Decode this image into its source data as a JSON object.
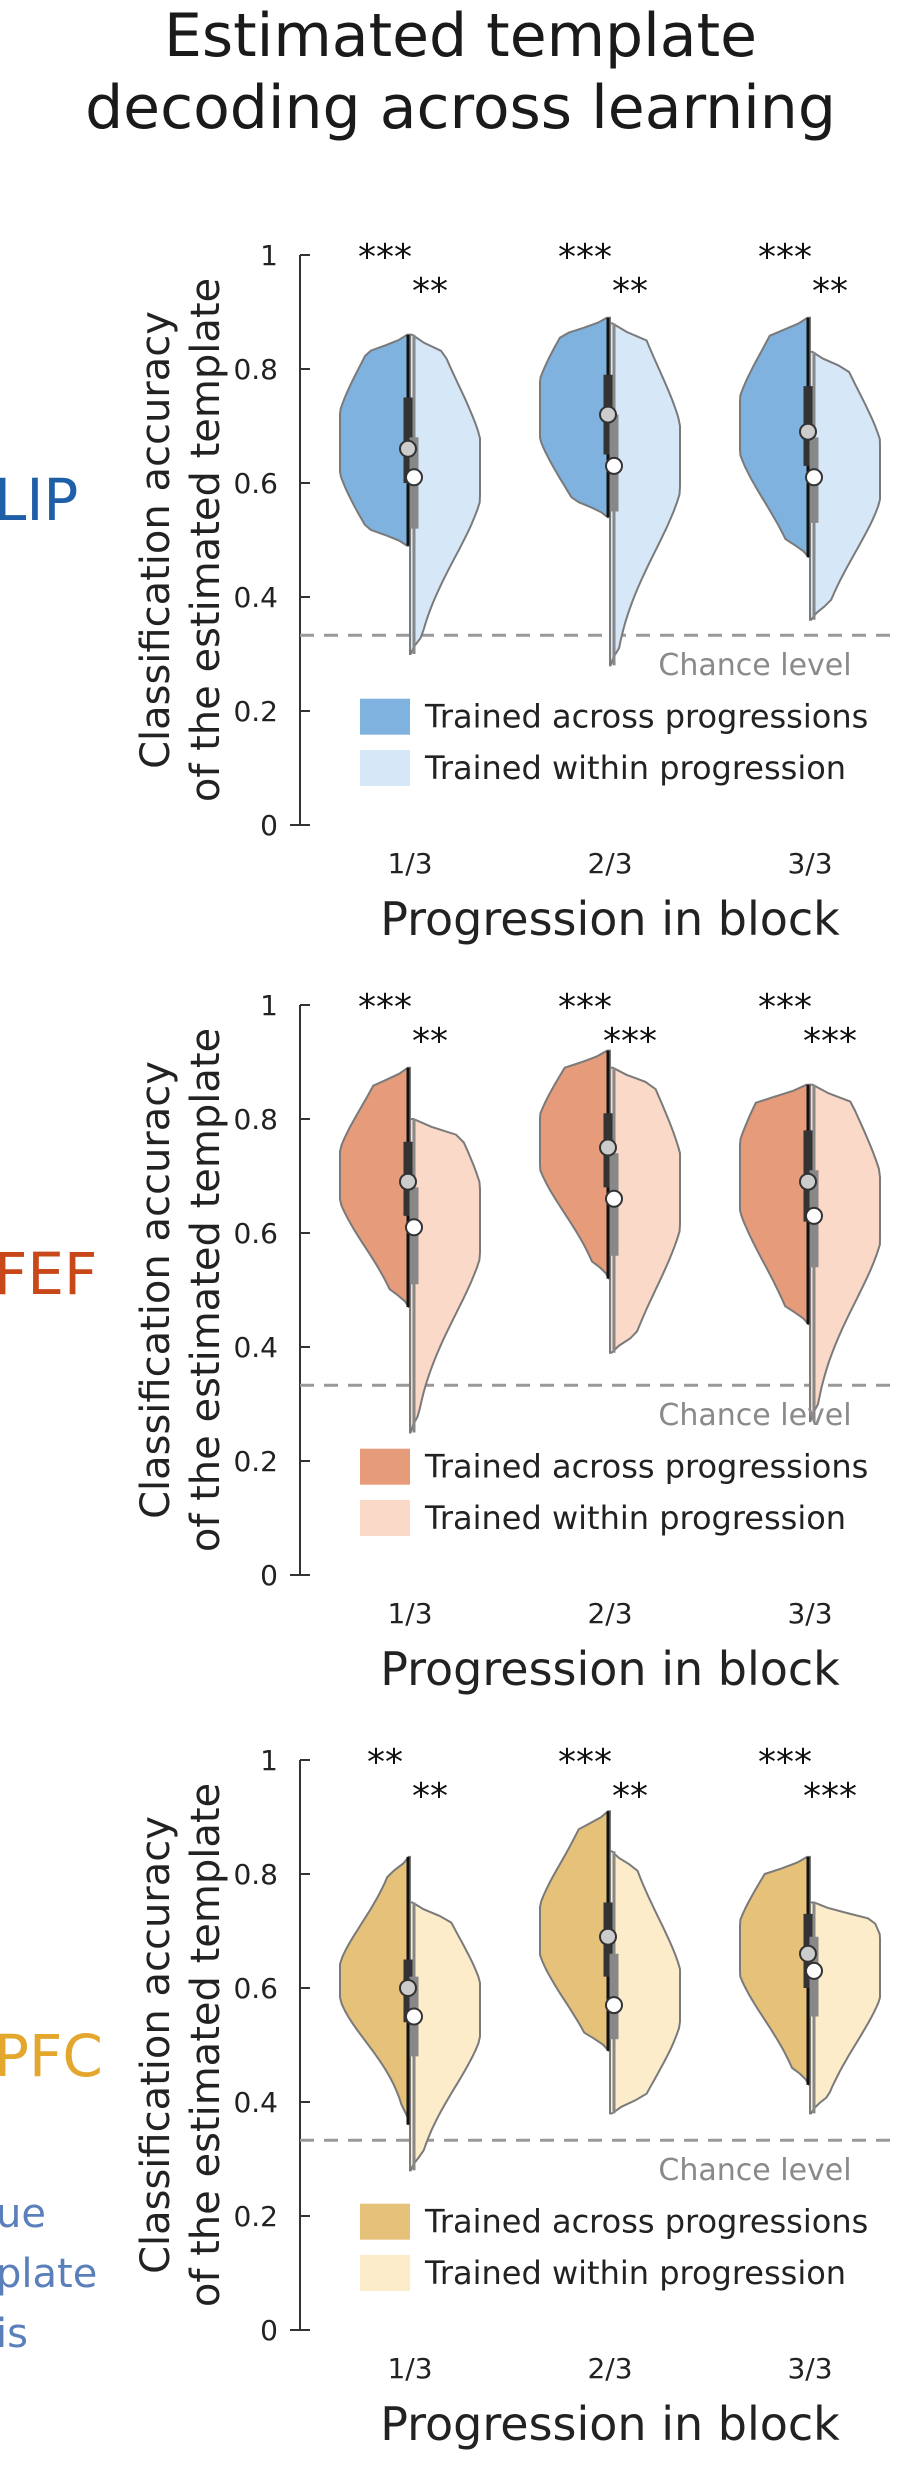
{
  "title": {
    "line1": "Estimated template",
    "line2": "decoding across learning"
  },
  "side_fragments": [
    "ue",
    "plate",
    "is"
  ],
  "common": {
    "categories": [
      "1/3",
      "2/3",
      "3/3"
    ],
    "ylim": [
      0,
      1
    ],
    "yticks": [
      0,
      0.2,
      0.4,
      0.6,
      0.8,
      1
    ],
    "ytick_labels": [
      "0",
      "0.2",
      "0.4",
      "0.6",
      "0.8",
      "1"
    ],
    "ylabel_line1": "Classification accuracy",
    "ylabel_line2": "of the estimated template",
    "xlabel": "Progression in block",
    "chance_value": 0.333,
    "chance_label": "Chance level",
    "legend": [
      "Trained across progressions",
      "Trained within progression"
    ]
  },
  "chart_data": [
    {
      "type": "violin",
      "region": "LIP",
      "region_color": "#1f5fa8",
      "colors": {
        "across": "#7fb2df",
        "within": "#d6e8f8",
        "edge": "#7a7a7a"
      },
      "categories": [
        "1/3",
        "2/3",
        "3/3"
      ],
      "xlabel": "Progression in block",
      "ylabel": "Classification accuracy of the estimated template",
      "ylim": [
        0,
        1
      ],
      "chance_level": 0.333,
      "legend_position": "bottom",
      "series": [
        {
          "name": "Trained across progressions",
          "medians": [
            0.66,
            0.72,
            0.69
          ],
          "min": [
            0.49,
            0.54,
            0.47
          ],
          "max": [
            0.86,
            0.89,
            0.89
          ],
          "q1": [
            0.6,
            0.65,
            0.63
          ],
          "q3": [
            0.75,
            0.79,
            0.77
          ],
          "significance": [
            "***",
            "***",
            "***"
          ]
        },
        {
          "name": "Trained within progression",
          "medians": [
            0.61,
            0.63,
            0.61
          ],
          "min": [
            0.3,
            0.28,
            0.36
          ],
          "max": [
            0.86,
            0.88,
            0.83
          ],
          "q1": [
            0.52,
            0.55,
            0.53
          ],
          "q3": [
            0.68,
            0.72,
            0.68
          ],
          "significance": [
            "**",
            "**",
            "**"
          ]
        }
      ]
    },
    {
      "type": "violin",
      "region": "FEF",
      "region_color": "#c8481a",
      "colors": {
        "across": "#e69b7b",
        "within": "#fbd9c8",
        "edge": "#7a7a7a"
      },
      "categories": [
        "1/3",
        "2/3",
        "3/3"
      ],
      "xlabel": "Progression in block",
      "ylabel": "Classification accuracy of the estimated template",
      "ylim": [
        0,
        1
      ],
      "chance_level": 0.333,
      "legend_position": "bottom",
      "series": [
        {
          "name": "Trained across progressions",
          "medians": [
            0.69,
            0.75,
            0.69
          ],
          "min": [
            0.47,
            0.52,
            0.44
          ],
          "max": [
            0.89,
            0.92,
            0.86
          ],
          "q1": [
            0.63,
            0.68,
            0.62
          ],
          "q3": [
            0.76,
            0.81,
            0.78
          ],
          "significance": [
            "***",
            "***",
            "***"
          ]
        },
        {
          "name": "Trained within progression",
          "medians": [
            0.61,
            0.66,
            0.63
          ],
          "min": [
            0.25,
            0.39,
            0.27
          ],
          "max": [
            0.8,
            0.89,
            0.86
          ],
          "q1": [
            0.51,
            0.56,
            0.54
          ],
          "q3": [
            0.68,
            0.74,
            0.71
          ],
          "significance": [
            "**",
            "***",
            "***"
          ]
        }
      ]
    },
    {
      "type": "violin",
      "region": "PFC",
      "region_color": "#e3a72e",
      "colors": {
        "across": "#e6c17a",
        "within": "#fcecca",
        "edge": "#7a7a7a"
      },
      "categories": [
        "1/3",
        "2/3",
        "3/3"
      ],
      "xlabel": "Progression in block",
      "ylabel": "Classification accuracy of the estimated template",
      "ylim": [
        0,
        1
      ],
      "chance_level": 0.333,
      "legend_position": "bottom",
      "series": [
        {
          "name": "Trained across progressions",
          "medians": [
            0.6,
            0.69,
            0.66
          ],
          "min": [
            0.36,
            0.49,
            0.43
          ],
          "max": [
            0.83,
            0.91,
            0.83
          ],
          "q1": [
            0.54,
            0.62,
            0.6
          ],
          "q3": [
            0.65,
            0.75,
            0.73
          ],
          "significance": [
            "**",
            "***",
            "***"
          ]
        },
        {
          "name": "Trained within progression",
          "medians": [
            0.55,
            0.57,
            0.63
          ],
          "min": [
            0.28,
            0.38,
            0.38
          ],
          "max": [
            0.75,
            0.84,
            0.75
          ],
          "q1": [
            0.48,
            0.51,
            0.55
          ],
          "q3": [
            0.62,
            0.66,
            0.69
          ],
          "significance": [
            "**",
            "**",
            "***"
          ]
        }
      ]
    }
  ]
}
